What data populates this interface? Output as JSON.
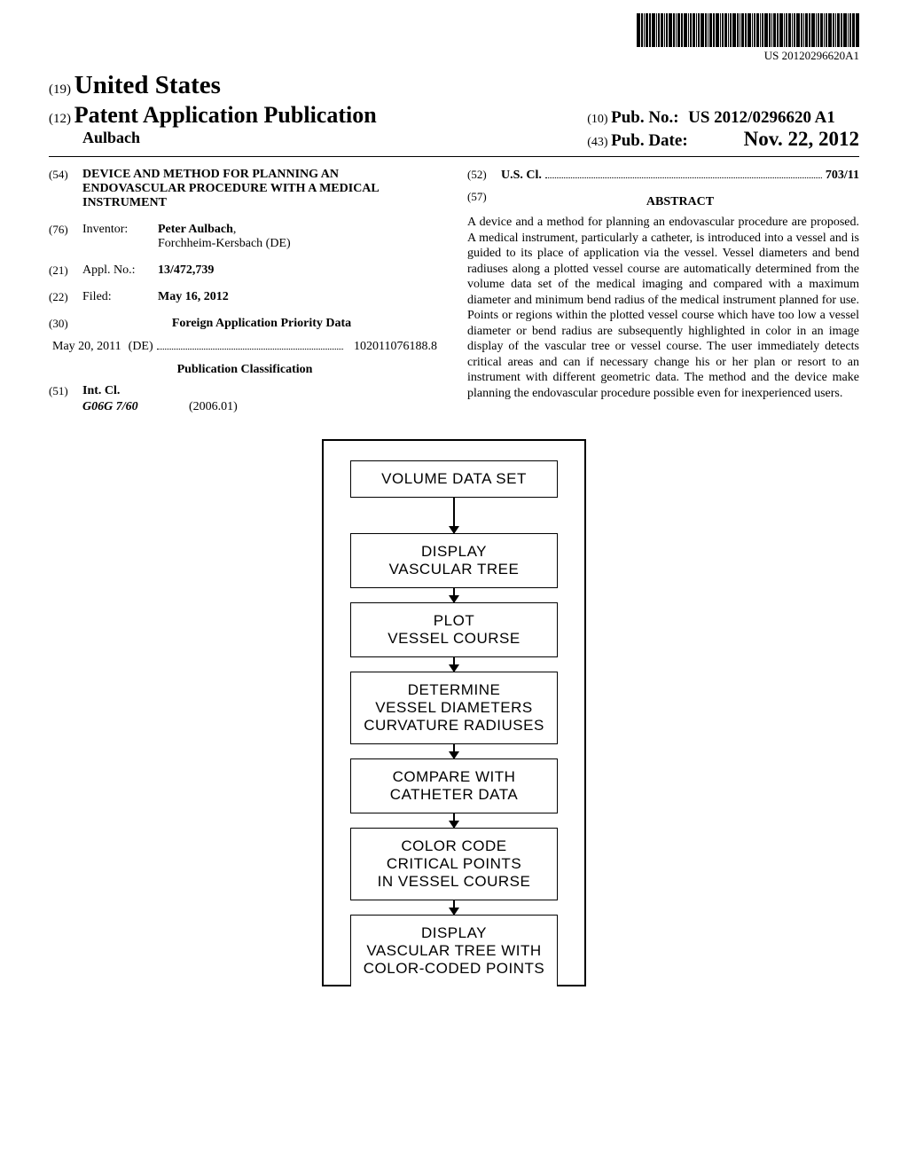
{
  "barcode_text": "US 20120296620A1",
  "header": {
    "code19": "(19)",
    "country": "United States",
    "code12": "(12)",
    "pub_type": "Patent Application Publication",
    "author": "Aulbach",
    "code10": "(10)",
    "pub_no_label": "Pub. No.:",
    "pub_no": "US 2012/0296620 A1",
    "code43": "(43)",
    "pub_date_label": "Pub. Date:",
    "pub_date": "Nov. 22, 2012"
  },
  "left": {
    "title_code": "(54)",
    "title": "DEVICE AND METHOD FOR PLANNING AN ENDOVASCULAR PROCEDURE WITH A MEDICAL INSTRUMENT",
    "inventor_code": "(76)",
    "inventor_label": "Inventor:",
    "inventor_name": "Peter Aulbach",
    "inventor_loc": "Forchheim-Kersbach (DE)",
    "appl_code": "(21)",
    "appl_label": "Appl. No.:",
    "appl_no": "13/472,739",
    "filed_code": "(22)",
    "filed_label": "Filed:",
    "filed_date": "May 16, 2012",
    "foreign_code": "(30)",
    "foreign_title": "Foreign Application Priority Data",
    "foreign_date": "May 20, 2011",
    "foreign_country": "(DE)",
    "foreign_no": "102011076188.8",
    "pub_class_title": "Publication Classification",
    "intcl_code": "(51)",
    "intcl_label": "Int. Cl.",
    "intcl_class": "G06G 7/60",
    "intcl_year": "(2006.01)"
  },
  "right": {
    "uscl_code": "(52)",
    "uscl_label": "U.S. Cl.",
    "uscl_val": "703/11",
    "abstract_code": "(57)",
    "abstract_label": "ABSTRACT",
    "abstract": "A device and a method for planning an endovascular procedure are proposed. A medical instrument, particularly a catheter, is introduced into a vessel and is guided to its place of application via the vessel. Vessel diameters and bend radiuses along a plotted vessel course are automatically determined from the volume data set of the medical imaging and compared with a maximum diameter and minimum bend radius of the medical instrument planned for use. Points or regions within the plotted vessel course which have too low a vessel diameter or bend radius are subsequently highlighted in color in an image display of the vascular tree or vessel course. The user immediately detects critical areas and can if necessary change his or her plan or resort to an instrument with different geometric data. The method and the device make planning the endovascular procedure possible even for inexperienced users."
  },
  "flowchart": {
    "boxes": [
      "VOLUME DATA SET",
      "DISPLAY\nVASCULAR TREE",
      "PLOT\nVESSEL COURSE",
      "DETERMINE\nVESSEL DIAMETERS\nCURVATURE RADIUSES",
      "COMPARE WITH\nCATHETER DATA",
      "COLOR CODE\nCRITICAL POINTS\nIN VESSEL COURSE",
      "DISPLAY\nVASCULAR TREE WITH\nCOLOR-CODED POINTS"
    ]
  },
  "style": {
    "page_bg": "#ffffff",
    "text_color": "#000000",
    "box_border": "#000000"
  }
}
